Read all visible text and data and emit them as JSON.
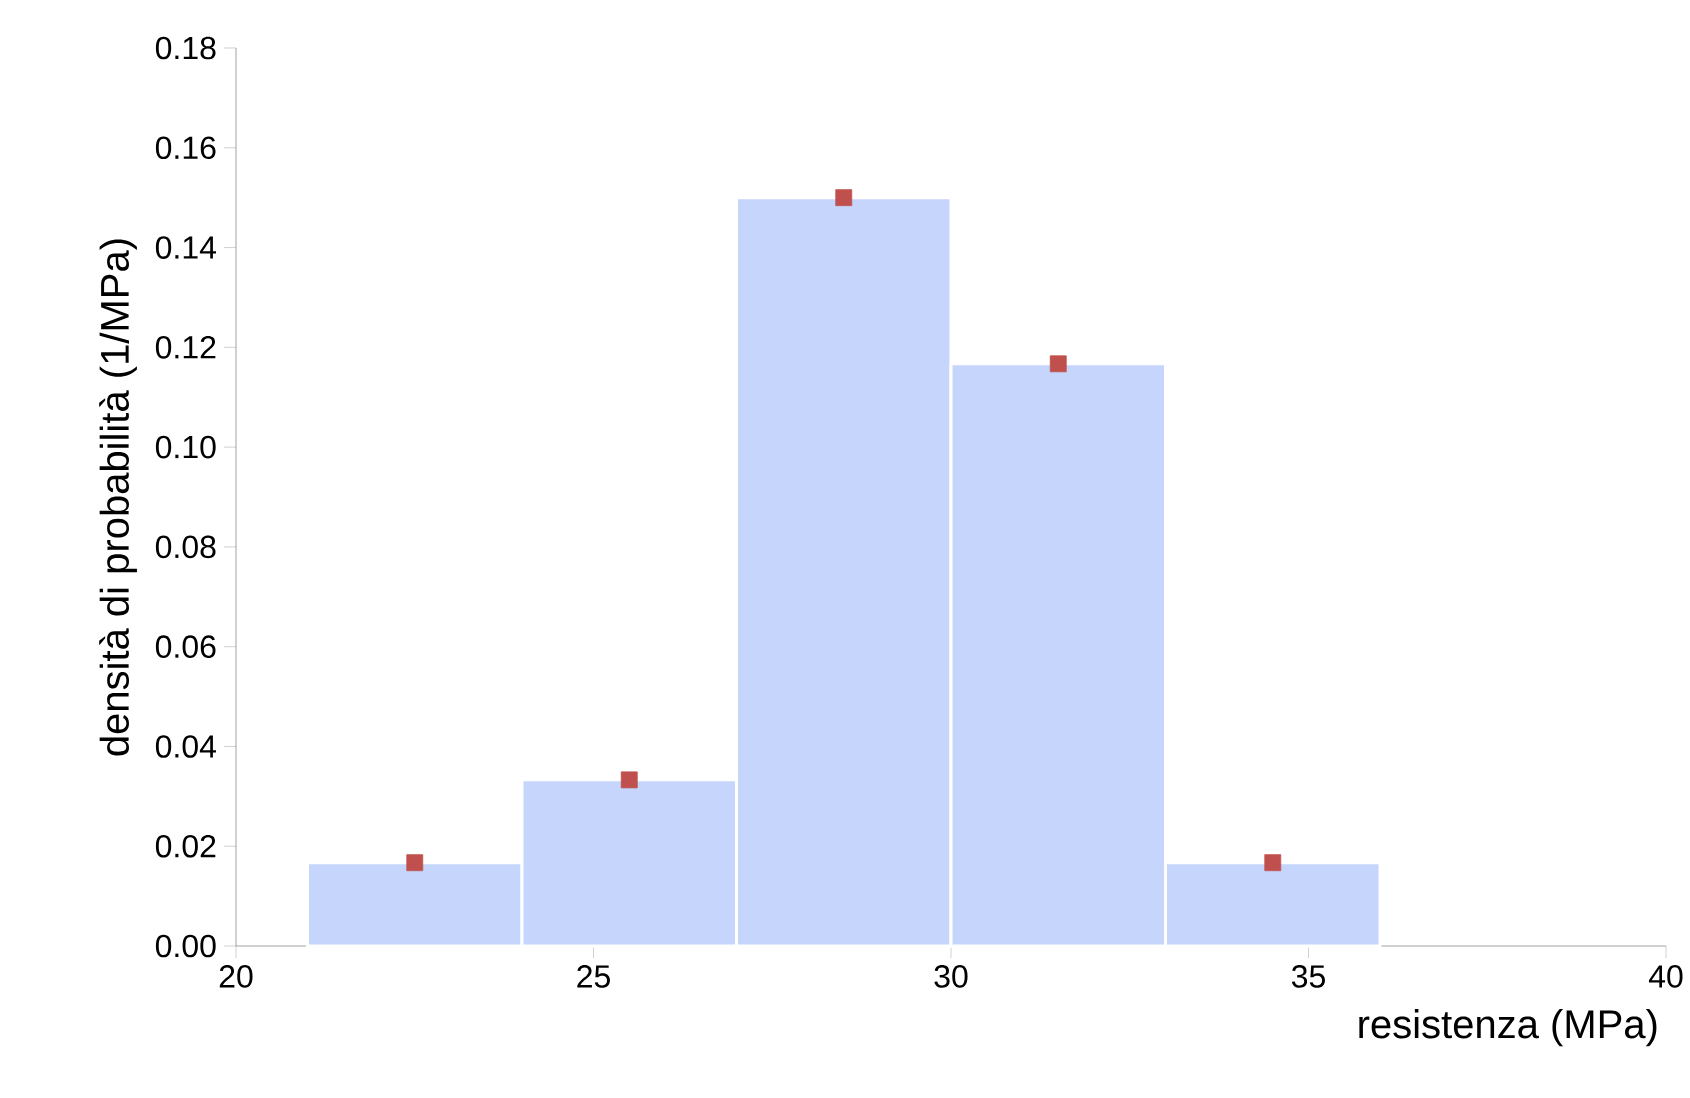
{
  "chart_data": {
    "type": "histogram",
    "xlabel": "resistenza (MPa)",
    "ylabel": "densità di probabilità (1/MPa)",
    "xlim": [
      20,
      40
    ],
    "xticks": [
      20,
      25,
      30,
      35,
      40
    ],
    "ylim": [
      0,
      0.18
    ],
    "yticks": [
      {
        "value": 0,
        "label": "0.00"
      },
      {
        "value": 0.02,
        "label": "0.02"
      },
      {
        "value": 0.04,
        "label": "0.04"
      },
      {
        "value": 0.06,
        "label": "0.06"
      },
      {
        "value": 0.08,
        "label": "0.08"
      },
      {
        "value": 0.1,
        "label": "0.10"
      },
      {
        "value": 0.12,
        "label": "0.12"
      },
      {
        "value": 0.14,
        "label": "0.14"
      },
      {
        "value": 0.16,
        "label": "0.16"
      },
      {
        "value": 0.18,
        "label": "0.18"
      }
    ],
    "grid": false,
    "series": [
      {
        "color": "#c5d5fb",
        "bins": [
          21,
          24,
          27,
          30,
          33,
          36
        ],
        "values": [
          0.0167,
          0.0333,
          0.15,
          0.1167,
          0.0167
        ]
      },
      {
        "type": "scatter",
        "color": "#c0504d",
        "marker": "square",
        "x": [
          22.5,
          25.5,
          28.5,
          31.5,
          34.5
        ],
        "values": [
          0.0167,
          0.0333,
          0.15,
          0.1167,
          0.0167
        ]
      }
    ]
  }
}
